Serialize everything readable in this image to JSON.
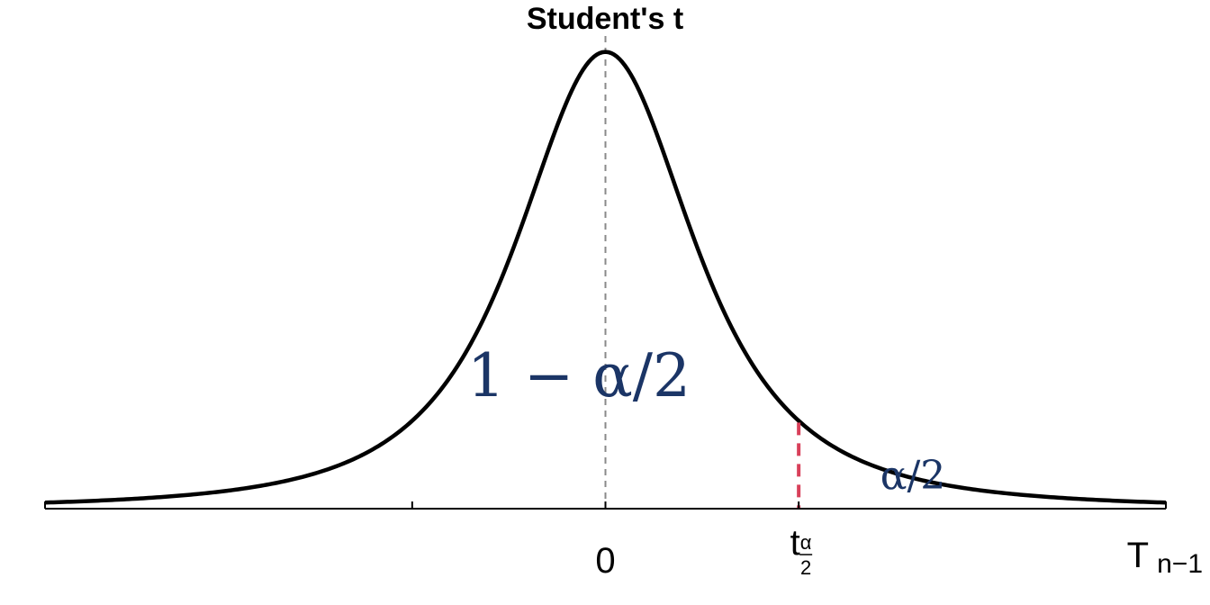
{
  "chart_data": {
    "type": "line",
    "title": "Student's t",
    "distribution": "student-t",
    "degrees_of_freedom": 2,
    "xlim": [
      -5.8,
      5.8
    ],
    "ylim": [
      0,
      0.354
    ],
    "x_ticks": [
      -5.8,
      -2,
      0,
      2,
      5.8
    ],
    "x_tick_labels": [
      {
        "x": 0,
        "text": "0"
      },
      {
        "x": 2,
        "text": "t",
        "subscript_numerator": "α",
        "subscript_denominator": "2"
      }
    ],
    "axis_label": {
      "main": "T",
      "subscript": "n−1"
    },
    "critical_value": 2,
    "center_line_x": 0,
    "area_labels": {
      "center": "1 − α/2",
      "tail": "α/2"
    },
    "show_grid": false
  },
  "colors": {
    "curve": "#000000",
    "axis": "#000000",
    "center_line": "#8a8a8a",
    "critical_line": "#d8405a",
    "area_labels": "#1b3566"
  }
}
